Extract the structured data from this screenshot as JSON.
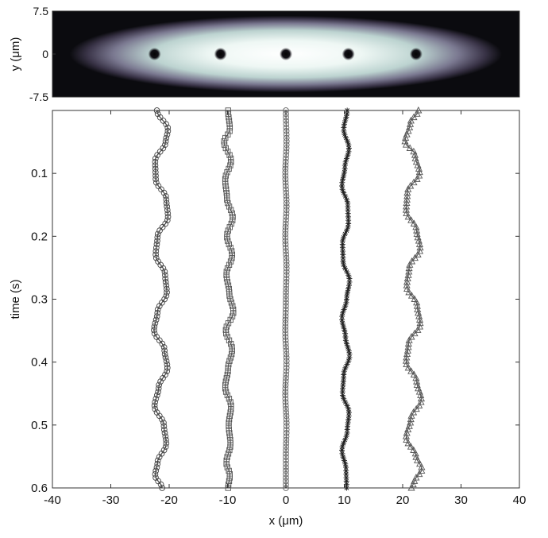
{
  "chart_data": [
    {
      "type": "heatmap",
      "title": "",
      "xlabel": "",
      "ylabel": "y (μm)",
      "xlim": [
        -40,
        40
      ],
      "ylim": [
        -7.5,
        7.5
      ],
      "x_ticks": [],
      "y_ticks": [
        {
          "value": 7.5,
          "label": "7.5"
        },
        {
          "value": 0,
          "label": "0"
        },
        {
          "value": -7.5,
          "label": "-7.5"
        }
      ],
      "cloud": {
        "cx": 0,
        "cy": 0,
        "rx": 37,
        "ry": 6.7
      },
      "vortices": [
        {
          "x": -22.5,
          "y": 0
        },
        {
          "x": -11.2,
          "y": 0
        },
        {
          "x": 0,
          "y": 0
        },
        {
          "x": 10.7,
          "y": 0
        },
        {
          "x": 22.3,
          "y": 0
        }
      ],
      "colors": {
        "background": "#0b0b0f",
        "mid": "#5a5670",
        "bright": "#f4fbf8",
        "core": "#050505"
      }
    },
    {
      "type": "line",
      "title": "",
      "xlabel": "x (μm)",
      "ylabel": "time (s)",
      "xlim": [
        -40,
        40
      ],
      "ylim": [
        0,
        0.6
      ],
      "y_inverted": true,
      "grid": false,
      "legend": "none",
      "x_ticks": [
        {
          "value": -40,
          "label": "-40"
        },
        {
          "value": -30,
          "label": "-30"
        },
        {
          "value": -20,
          "label": "-20"
        },
        {
          "value": -10,
          "label": "-10"
        },
        {
          "value": 0,
          "label": "0"
        },
        {
          "value": 10,
          "label": "10"
        },
        {
          "value": 20,
          "label": "20"
        },
        {
          "value": 30,
          "label": "30"
        },
        {
          "value": 40,
          "label": "40"
        }
      ],
      "y_ticks": [
        {
          "value": 0.1,
          "label": "0.1"
        },
        {
          "value": 0.2,
          "label": "0.2"
        },
        {
          "value": 0.3,
          "label": "0.3"
        },
        {
          "value": 0.4,
          "label": "0.4"
        },
        {
          "value": 0.5,
          "label": "0.5"
        },
        {
          "value": 0.6,
          "label": "0.6"
        }
      ],
      "series": [
        {
          "marker": "circle",
          "color": "#444444",
          "values": [
            {
              "t": 0.0,
              "x": -22.1
            },
            {
              "t": 0.03,
              "x": -20.2
            },
            {
              "t": 0.05,
              "x": -20.6
            },
            {
              "t": 0.08,
              "x": -22.4
            },
            {
              "t": 0.11,
              "x": -22.3
            },
            {
              "t": 0.14,
              "x": -20.5
            },
            {
              "t": 0.17,
              "x": -20.2
            },
            {
              "t": 0.2,
              "x": -22.0
            },
            {
              "t": 0.23,
              "x": -22.3
            },
            {
              "t": 0.26,
              "x": -20.7
            },
            {
              "t": 0.29,
              "x": -20.4
            },
            {
              "t": 0.32,
              "x": -22.0
            },
            {
              "t": 0.35,
              "x": -22.6
            },
            {
              "t": 0.38,
              "x": -20.8
            },
            {
              "t": 0.41,
              "x": -20.3
            },
            {
              "t": 0.44,
              "x": -21.8
            },
            {
              "t": 0.47,
              "x": -22.5
            },
            {
              "t": 0.5,
              "x": -20.9
            },
            {
              "t": 0.53,
              "x": -20.5
            },
            {
              "t": 0.56,
              "x": -22.0
            },
            {
              "t": 0.58,
              "x": -22.4
            },
            {
              "t": 0.6,
              "x": -21.2
            }
          ]
        },
        {
          "marker": "square",
          "color": "#555555",
          "values": [
            {
              "t": 0.0,
              "x": -9.9
            },
            {
              "t": 0.03,
              "x": -9.6
            },
            {
              "t": 0.05,
              "x": -10.6
            },
            {
              "t": 0.08,
              "x": -9.4
            },
            {
              "t": 0.11,
              "x": -10.4
            },
            {
              "t": 0.14,
              "x": -10.1
            },
            {
              "t": 0.17,
              "x": -9.1
            },
            {
              "t": 0.2,
              "x": -10.1
            },
            {
              "t": 0.23,
              "x": -9.2
            },
            {
              "t": 0.26,
              "x": -10.2
            },
            {
              "t": 0.29,
              "x": -9.7
            },
            {
              "t": 0.32,
              "x": -9.0
            },
            {
              "t": 0.35,
              "x": -10.3
            },
            {
              "t": 0.38,
              "x": -9.2
            },
            {
              "t": 0.41,
              "x": -9.9
            },
            {
              "t": 0.44,
              "x": -10.4
            },
            {
              "t": 0.47,
              "x": -9.4
            },
            {
              "t": 0.5,
              "x": -9.8
            },
            {
              "t": 0.53,
              "x": -9.5
            },
            {
              "t": 0.56,
              "x": -10.2
            },
            {
              "t": 0.58,
              "x": -9.6
            },
            {
              "t": 0.6,
              "x": -9.9
            }
          ]
        },
        {
          "marker": "circle",
          "color": "#666666",
          "values": [
            {
              "t": 0.0,
              "x": 0.0
            },
            {
              "t": 0.05,
              "x": 0.1
            },
            {
              "t": 0.1,
              "x": -0.1
            },
            {
              "t": 0.15,
              "x": 0.1
            },
            {
              "t": 0.2,
              "x": -0.1
            },
            {
              "t": 0.25,
              "x": 0.1
            },
            {
              "t": 0.3,
              "x": 0.0
            },
            {
              "t": 0.35,
              "x": -0.1
            },
            {
              "t": 0.4,
              "x": 0.1
            },
            {
              "t": 0.45,
              "x": -0.1
            },
            {
              "t": 0.5,
              "x": 0.1
            },
            {
              "t": 0.55,
              "x": 0.0
            },
            {
              "t": 0.6,
              "x": 0.0
            }
          ]
        },
        {
          "marker": "star",
          "color": "#222222",
          "values": [
            {
              "t": 0.0,
              "x": 10.5
            },
            {
              "t": 0.03,
              "x": 9.9
            },
            {
              "t": 0.06,
              "x": 10.8
            },
            {
              "t": 0.09,
              "x": 10.1
            },
            {
              "t": 0.12,
              "x": 9.6
            },
            {
              "t": 0.15,
              "x": 10.6
            },
            {
              "t": 0.18,
              "x": 10.7
            },
            {
              "t": 0.21,
              "x": 9.7
            },
            {
              "t": 0.24,
              "x": 9.8
            },
            {
              "t": 0.27,
              "x": 10.9
            },
            {
              "t": 0.3,
              "x": 10.4
            },
            {
              "t": 0.33,
              "x": 9.6
            },
            {
              "t": 0.36,
              "x": 10.2
            },
            {
              "t": 0.39,
              "x": 10.9
            },
            {
              "t": 0.42,
              "x": 9.9
            },
            {
              "t": 0.45,
              "x": 9.7
            },
            {
              "t": 0.48,
              "x": 10.8
            },
            {
              "t": 0.51,
              "x": 10.5
            },
            {
              "t": 0.54,
              "x": 9.6
            },
            {
              "t": 0.57,
              "x": 10.3
            },
            {
              "t": 0.6,
              "x": 10.4
            }
          ]
        },
        {
          "marker": "triangle",
          "color": "#555555",
          "values": [
            {
              "t": 0.0,
              "x": 22.7
            },
            {
              "t": 0.02,
              "x": 21.3
            },
            {
              "t": 0.05,
              "x": 20.4
            },
            {
              "t": 0.07,
              "x": 22.1
            },
            {
              "t": 0.1,
              "x": 22.9
            },
            {
              "t": 0.13,
              "x": 20.8
            },
            {
              "t": 0.16,
              "x": 20.6
            },
            {
              "t": 0.19,
              "x": 22.4
            },
            {
              "t": 0.22,
              "x": 23.0
            },
            {
              "t": 0.25,
              "x": 21.1
            },
            {
              "t": 0.28,
              "x": 20.7
            },
            {
              "t": 0.31,
              "x": 22.5
            },
            {
              "t": 0.34,
              "x": 23.0
            },
            {
              "t": 0.37,
              "x": 21.0
            },
            {
              "t": 0.4,
              "x": 20.6
            },
            {
              "t": 0.43,
              "x": 22.4
            },
            {
              "t": 0.46,
              "x": 23.2
            },
            {
              "t": 0.49,
              "x": 21.4
            },
            {
              "t": 0.52,
              "x": 20.6
            },
            {
              "t": 0.55,
              "x": 22.3
            },
            {
              "t": 0.57,
              "x": 23.3
            },
            {
              "t": 0.59,
              "x": 22.0
            },
            {
              "t": 0.6,
              "x": 21.5
            }
          ]
        }
      ]
    }
  ]
}
